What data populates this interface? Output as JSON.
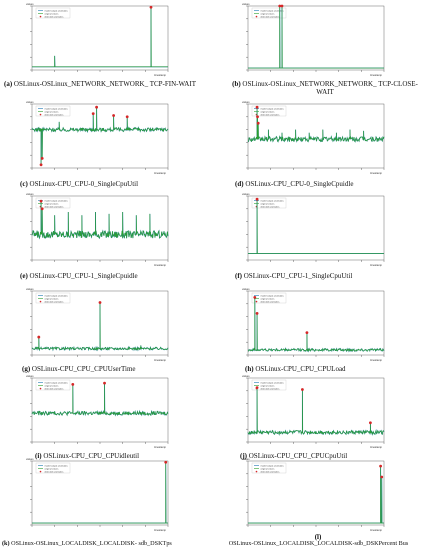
{
  "figure": {
    "legend_labels": [
      "model output anomalies",
      "original values",
      "detected anomalies"
    ],
    "x_axis_label": "timestamp",
    "y_axis_label": "values",
    "panels": [
      {
        "letter": "a",
        "caption": "OSLinux-OSLinux_NETWORK_NETWORK_ TCP-FIN-WAIT"
      },
      {
        "letter": "b",
        "caption": "OSLinux-OSLinux_NETWORK_NETWORK_ TCP-CLOSE-WAIT"
      },
      {
        "letter": "c",
        "caption": "OSLinux-CPU_CPU-0_SingleCpuUtil"
      },
      {
        "letter": "d",
        "caption": "OSLinux-CPU_CPU-0_SingleCpuidle"
      },
      {
        "letter": "e",
        "caption": "OSLinux-CPU_CPU-1_SingleCpuidle"
      },
      {
        "letter": "f",
        "caption": "OSLinux-CPU_CPU-1_SingleCpuUtil"
      },
      {
        "letter": "g",
        "caption": "OSLinux-CPU_CPU_CPUUserTime"
      },
      {
        "letter": "h",
        "caption": "OSLinux-CPU_CPU_CPULoad"
      },
      {
        "letter": "i",
        "caption": "OSLinux-CPU_CPU_CPUidleutil"
      },
      {
        "letter": "j",
        "caption": "OSLinux-CPU_CPU_CPUCpuUtil"
      },
      {
        "letter": "k",
        "caption": "OSLinux-OSLinux_LOCALDISK_LOCALDISK- sdb_DSKTps"
      },
      {
        "letter": "l",
        "caption": "OSLinux-OSLinux_LOCALDISK_LOCALDISK-sdb_DSKPercent Bus"
      }
    ]
  },
  "chart_data": [
    {
      "type": "line",
      "id": "a",
      "x": [
        0,
        600
      ],
      "ylim": [
        0,
        100
      ],
      "baseline": 5,
      "noise": 0,
      "spikes": [
        {
          "x": 100,
          "y": 22
        },
        {
          "x": 525,
          "y": 98
        }
      ],
      "anomalies": [
        525
      ],
      "colors": {
        "original": "#2ca02c",
        "model": "#1f77b4",
        "detected": "#d62728"
      }
    },
    {
      "type": "line",
      "id": "b",
      "x": [
        0,
        600
      ],
      "ylim": [
        0,
        100
      ],
      "baseline": 3,
      "noise": 0,
      "spikes": [
        {
          "x": 140,
          "y": 100
        },
        {
          "x": 150,
          "y": 100
        }
      ],
      "anomalies": [
        140,
        150
      ],
      "colors": {
        "original": "#2ca02c",
        "model": "#1f77b4",
        "detected": "#d62728"
      }
    },
    {
      "type": "line",
      "id": "c",
      "x": [
        0,
        600
      ],
      "ylim": [
        0,
        100
      ],
      "baseline": 60,
      "noise": 3,
      "spikes": [
        {
          "x": 40,
          "y": 5
        },
        {
          "x": 45,
          "y": 15
        },
        {
          "x": 120,
          "y": 72
        },
        {
          "x": 270,
          "y": 85
        },
        {
          "x": 285,
          "y": 95
        },
        {
          "x": 360,
          "y": 82
        },
        {
          "x": 420,
          "y": 80
        }
      ],
      "anomalies": [
        40,
        45,
        270,
        285,
        360,
        420
      ],
      "colors": {
        "original": "#2ca02c",
        "model": "#1f77b4",
        "detected": "#d62728"
      }
    },
    {
      "type": "line",
      "id": "d",
      "x": [
        0,
        600
      ],
      "ylim": [
        0,
        100
      ],
      "baseline": 45,
      "noise": 4,
      "spikes": [
        {
          "x": 40,
          "y": 95
        },
        {
          "x": 42,
          "y": 80
        },
        {
          "x": 45,
          "y": 70
        },
        {
          "x": 90,
          "y": 60
        },
        {
          "x": 150,
          "y": 55
        },
        {
          "x": 210,
          "y": 60
        },
        {
          "x": 270,
          "y": 55
        },
        {
          "x": 330,
          "y": 60
        },
        {
          "x": 390,
          "y": 55
        },
        {
          "x": 450,
          "y": 60
        },
        {
          "x": 510,
          "y": 58
        }
      ],
      "anomalies": [
        40,
        42,
        45
      ],
      "colors": {
        "original": "#2ca02c",
        "model": "#1f77b4",
        "detected": "#d62728"
      }
    },
    {
      "type": "line",
      "id": "e",
      "x": [
        0,
        600
      ],
      "ylim": [
        0,
        100
      ],
      "baseline": 40,
      "noise": 6,
      "spikes": [
        {
          "x": 40,
          "y": 92
        },
        {
          "x": 45,
          "y": 80
        },
        {
          "x": 100,
          "y": 70
        },
        {
          "x": 160,
          "y": 75
        },
        {
          "x": 220,
          "y": 70
        },
        {
          "x": 280,
          "y": 75
        },
        {
          "x": 340,
          "y": 72
        },
        {
          "x": 400,
          "y": 75
        },
        {
          "x": 460,
          "y": 70
        },
        {
          "x": 520,
          "y": 72
        }
      ],
      "anomalies": [
        40,
        45
      ],
      "colors": {
        "original": "#2ca02c",
        "model": "#1f77b4",
        "detected": "#d62728"
      }
    },
    {
      "type": "line",
      "id": "f",
      "x": [
        0,
        600
      ],
      "ylim": [
        0,
        100
      ],
      "baseline": 10,
      "noise": 0,
      "spikes": [
        {
          "x": 40,
          "y": 95
        }
      ],
      "anomalies": [
        40
      ],
      "colors": {
        "original": "#2ca02c",
        "model": "#1f77b4",
        "detected": "#d62728"
      }
    },
    {
      "type": "line",
      "id": "g",
      "x": [
        0,
        600
      ],
      "ylim": [
        0,
        100
      ],
      "baseline": 10,
      "noise": 2,
      "spikes": [
        {
          "x": 30,
          "y": 28
        },
        {
          "x": 300,
          "y": 82
        },
        {
          "x": 480,
          "y": 15
        }
      ],
      "anomalies": [
        30,
        300
      ],
      "colors": {
        "original": "#2ca02c",
        "model": "#1f77b4",
        "detected": "#d62728"
      }
    },
    {
      "type": "line",
      "id": "h",
      "x": [
        0,
        600
      ],
      "ylim": [
        0,
        100
      ],
      "baseline": 8,
      "noise": 2,
      "spikes": [
        {
          "x": 30,
          "y": 90
        },
        {
          "x": 40,
          "y": 65
        },
        {
          "x": 260,
          "y": 35
        }
      ],
      "anomalies": [
        30,
        40,
        260
      ],
      "colors": {
        "original": "#2ca02c",
        "model": "#1f77b4",
        "detected": "#d62728"
      }
    },
    {
      "type": "line",
      "id": "i",
      "x": [
        0,
        600
      ],
      "ylim": [
        0,
        100
      ],
      "baseline": 45,
      "noise": 3,
      "spikes": [
        {
          "x": 180,
          "y": 90
        },
        {
          "x": 320,
          "y": 92
        }
      ],
      "anomalies": [
        180,
        320
      ],
      "colors": {
        "original": "#2ca02c",
        "model": "#1f77b4",
        "detected": "#d62728"
      }
    },
    {
      "type": "line",
      "id": "j",
      "x": [
        0,
        600
      ],
      "ylim": [
        0,
        100
      ],
      "baseline": 15,
      "noise": 3,
      "spikes": [
        {
          "x": 40,
          "y": 85
        },
        {
          "x": 240,
          "y": 82
        },
        {
          "x": 540,
          "y": 30
        }
      ],
      "anomalies": [
        40,
        240,
        540
      ],
      "colors": {
        "original": "#2ca02c",
        "model": "#1f77b4",
        "detected": "#d62728"
      }
    },
    {
      "type": "line",
      "id": "k",
      "x": [
        0,
        600
      ],
      "ylim": [
        0,
        100
      ],
      "baseline": 3,
      "noise": 0,
      "spikes": [
        {
          "x": 590,
          "y": 98
        }
      ],
      "anomalies": [
        590
      ],
      "colors": {
        "original": "#2ca02c",
        "model": "#1f77b4",
        "detected": "#d62728"
      }
    },
    {
      "type": "line",
      "id": "l",
      "x": [
        0,
        600
      ],
      "ylim": [
        0,
        100
      ],
      "baseline": 3,
      "noise": 0,
      "spikes": [
        {
          "x": 585,
          "y": 92
        },
        {
          "x": 590,
          "y": 75
        }
      ],
      "anomalies": [
        585,
        590
      ],
      "colors": {
        "original": "#2ca02c",
        "model": "#1f77b4",
        "detected": "#d62728"
      }
    }
  ]
}
